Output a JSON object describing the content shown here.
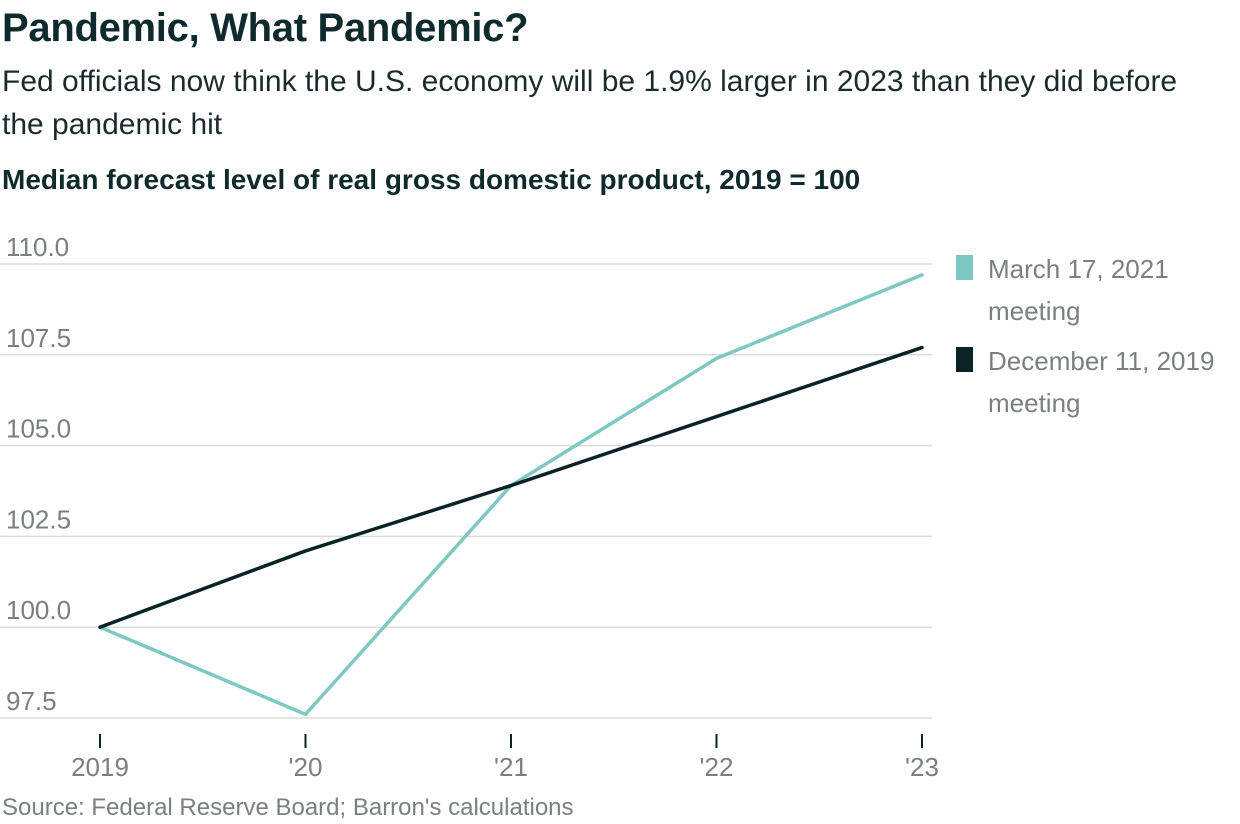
{
  "header": {
    "title": "Pandemic, What Pandemic?",
    "subtitle": "Fed officials now think the U.S. economy will be 1.9% larger in 2023 than they did before the pandemic hit",
    "chart_label": "Median forecast level of real gross domestic product, 2019 = 100"
  },
  "legend": {
    "items": [
      {
        "label": "March 17, 2021 meeting",
        "color": "#7ec8c3"
      },
      {
        "label": "December 11, 2019 meeting",
        "color": "#0a2426"
      }
    ]
  },
  "footer": {
    "source": "Source: Federal Reserve Board; Barron's calculations"
  },
  "chart_data": {
    "type": "line",
    "title": "Median forecast level of real gross domestic product, 2019 = 100",
    "categories": [
      "2019",
      "'20",
      "'21",
      "'22",
      "'23"
    ],
    "yticks": [
      "110.0",
      "107.5",
      "105.0",
      "102.5",
      "100.0",
      "97.5"
    ],
    "ytick_values": [
      110.0,
      107.5,
      105.0,
      102.5,
      100.0,
      97.5
    ],
    "ylim": [
      97.5,
      110.0
    ],
    "series": [
      {
        "name": "March 17, 2021 meeting",
        "color": "#7ec8c3",
        "values": [
          100.0,
          97.6,
          103.9,
          107.4,
          109.7
        ]
      },
      {
        "name": "December 11, 2019 meeting",
        "color": "#0a2426",
        "values": [
          100.0,
          102.1,
          103.9,
          105.8,
          107.7
        ]
      }
    ],
    "xlabel": "",
    "ylabel": "",
    "grid": true,
    "legend_position": "right"
  }
}
